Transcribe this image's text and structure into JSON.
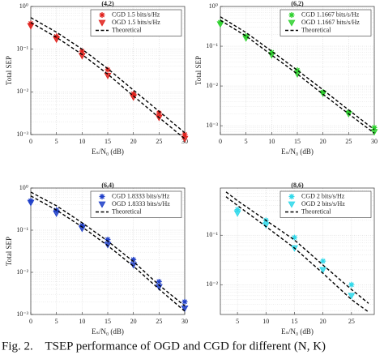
{
  "chart_data": [
    {
      "type": "line",
      "title": "(4,2)",
      "xlabel": "Eₛ/N₀ (dB)",
      "ylabel": "Total SEP",
      "log_y": true,
      "grid": true,
      "legend": "upper right",
      "x": [
        0,
        5,
        10,
        15,
        20,
        25,
        30
      ],
      "xlim": [
        0,
        30
      ],
      "xticks": [
        0,
        5,
        10,
        15,
        20,
        25,
        30
      ],
      "ylim": [
        0.001,
        1
      ],
      "yticks": [
        {
          "value": 0.001,
          "label": "10⁻³"
        },
        {
          "value": 0.01,
          "label": "10⁻²"
        },
        {
          "value": 0.1,
          "label": "10⁻¹"
        },
        {
          "value": 1,
          "label": "10⁰"
        }
      ],
      "series": [
        {
          "name": "CGD 1.5 bits/s/Hz",
          "color": "#e0201b",
          "marker": "plus",
          "values": [
            0.4,
            0.2,
            0.09,
            0.033,
            0.009,
            0.0032,
            0.001
          ]
        },
        {
          "name": "OGD 1.5 bits/s/Hz",
          "color": "#e0201b",
          "marker": "triangle-down",
          "values": [
            0.35,
            0.17,
            0.07,
            0.024,
            0.0075,
            0.0025,
            0.0008
          ]
        },
        {
          "name": "Theoretical",
          "color": "#000000",
          "dash": true,
          "values": [
            0.55,
            0.25,
            0.1,
            0.035,
            0.011,
            0.0035,
            0.0011
          ]
        },
        {
          "color": "#000000",
          "dash": true,
          "values": [
            0.42,
            0.19,
            0.075,
            0.026,
            0.008,
            0.0025,
            0.0008
          ]
        }
      ]
    },
    {
      "type": "line",
      "title": "(6,2)",
      "xlabel": "Eₛ/N₀ (dB)",
      "ylabel": "Total SEP",
      "log_y": true,
      "grid": true,
      "legend": "upper right",
      "x": [
        0,
        5,
        10,
        15,
        20,
        25,
        30
      ],
      "xlim": [
        0,
        30
      ],
      "xticks": [
        0,
        5,
        10,
        15,
        20,
        25,
        30
      ],
      "ylim": [
        0.0006,
        1
      ],
      "yticks": [
        {
          "value": 0.001,
          "label": "10⁻³"
        },
        {
          "value": 0.01,
          "label": "10⁻²"
        },
        {
          "value": 0.1,
          "label": "10⁻¹"
        },
        {
          "value": 1,
          "label": "10⁰"
        }
      ],
      "series": [
        {
          "name": "CGD 1.1667 bits/s/Hz",
          "color": "#2fd12f",
          "marker": "plus",
          "values": [
            0.4,
            0.18,
            0.07,
            0.025,
            0.007,
            0.0022,
            0.0009
          ]
        },
        {
          "name": "OGD 1.1667 bits/s/Hz",
          "color": "#2fd12f",
          "marker": "triangle-down",
          "values": [
            0.36,
            0.16,
            0.06,
            0.02,
            0.0065,
            0.002,
            0.0007
          ]
        },
        {
          "name": "Theoretical",
          "color": "#000000",
          "dash": true,
          "values": [
            0.55,
            0.22,
            0.075,
            0.025,
            0.008,
            0.0025,
            0.0008
          ]
        },
        {
          "color": "#000000",
          "dash": true,
          "values": [
            0.45,
            0.18,
            0.06,
            0.02,
            0.0062,
            0.002,
            0.00065
          ]
        }
      ]
    },
    {
      "type": "line",
      "title": "(6,4)",
      "xlabel": "Eₛ/N₀ (dB)",
      "ylabel": "Total SEP",
      "log_y": true,
      "grid": true,
      "legend": "upper right",
      "x": [
        0,
        5,
        10,
        15,
        20,
        25,
        30
      ],
      "xlim": [
        0,
        30
      ],
      "xticks": [
        0,
        5,
        10,
        15,
        20,
        25,
        30
      ],
      "ylim": [
        0.001,
        1
      ],
      "yticks": [
        {
          "value": 0.001,
          "label": "10⁻³"
        },
        {
          "value": 0.01,
          "label": "10⁻²"
        },
        {
          "value": 0.1,
          "label": "10⁻¹"
        },
        {
          "value": 1,
          "label": "10⁰"
        }
      ],
      "series": [
        {
          "name": "CGD 1.8333 bits/s/Hz",
          "color": "#1f3fc8",
          "marker": "plus",
          "values": [
            0.5,
            0.3,
            0.13,
            0.06,
            0.02,
            0.006,
            0.002
          ]
        },
        {
          "name": "OGD 1.8333 bits/s/Hz",
          "color": "#1f3fc8",
          "marker": "triangle-down",
          "values": [
            0.45,
            0.25,
            0.11,
            0.045,
            0.015,
            0.0045,
            0.0014
          ]
        },
        {
          "name": "Theoretical",
          "color": "#000000",
          "dash": true,
          "values": [
            0.8,
            0.38,
            0.15,
            0.055,
            0.018,
            0.005,
            0.0016
          ]
        },
        {
          "color": "#000000",
          "dash": true,
          "values": [
            0.65,
            0.3,
            0.12,
            0.043,
            0.014,
            0.004,
            0.0012
          ]
        }
      ]
    },
    {
      "type": "line",
      "title": "(8,6)",
      "xlabel": "Eₛ/N₀ (dB)",
      "log_y": true,
      "grid": true,
      "legend": "upper right",
      "x": [
        5,
        10,
        15,
        20,
        25
      ],
      "xlim": [
        2,
        29
      ],
      "xticks": [
        5,
        10,
        15,
        20,
        25
      ],
      "ylim": [
        0.0025,
        0.9
      ],
      "yticks": [
        {
          "value": 0.01,
          "label": "10⁻²"
        },
        {
          "value": 0.1,
          "label": "10⁻¹"
        }
      ],
      "series": [
        {
          "name": "CGD 2 bits/s/Hz",
          "color": "#2fd8ea",
          "marker": "plus",
          "values": [
            0.33,
            0.2,
            0.09,
            0.03,
            0.01
          ]
        },
        {
          "name": "OGD 2 bits/s/Hz",
          "color": "#2fd8ea",
          "marker": "triangle-down",
          "values": [
            0.28,
            0.16,
            0.055,
            0.02,
            0.006
          ]
        },
        {
          "name": "Theoretical",
          "color": "#000000",
          "dash": true,
          "x": [
            3,
            5,
            10,
            15,
            20,
            25,
            28
          ],
          "values": [
            0.75,
            0.5,
            0.2,
            0.08,
            0.025,
            0.008,
            0.0042
          ]
        },
        {
          "color": "#000000",
          "dash": true,
          "x": [
            3,
            5,
            10,
            15,
            20,
            25,
            28
          ],
          "values": [
            0.6,
            0.4,
            0.15,
            0.055,
            0.017,
            0.005,
            0.0028
          ]
        }
      ]
    }
  ],
  "caption": "Fig. 2.    TSEP performance of OGD and CGD for different (N, K)"
}
